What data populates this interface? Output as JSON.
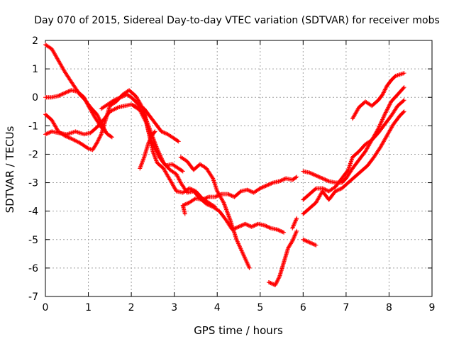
{
  "chart_data": {
    "type": "scatter",
    "title": "Day 070 of 2015, Sidereal Day-to-day VTEC variation (SDTVAR) for receiver mobs",
    "xlabel": "GPS time / hours",
    "ylabel": "SDTVAR / TECUs",
    "xlim": [
      0,
      9
    ],
    "ylim": [
      -7,
      2
    ],
    "grid": true,
    "legend": "none",
    "marker": "+",
    "color": "#ff0000",
    "x_ticks": [
      "0",
      "1",
      "2",
      "3",
      "4",
      "5",
      "6",
      "7",
      "8",
      "9"
    ],
    "y_ticks": [
      "2",
      "1",
      "0",
      "-1",
      "-2",
      "-3",
      "-4",
      "-5",
      "-6",
      "-7"
    ],
    "series": [
      {
        "points": [
          [
            0.0,
            1.85
          ],
          [
            0.15,
            1.7
          ],
          [
            0.3,
            1.3
          ],
          [
            0.45,
            0.9
          ],
          [
            0.6,
            0.55
          ],
          [
            0.8,
            0.1
          ],
          [
            0.9,
            -0.05
          ],
          [
            1.05,
            -0.35
          ],
          [
            1.2,
            -0.6
          ],
          [
            1.3,
            -0.9
          ],
          [
            1.4,
            -1.2
          ]
        ]
      },
      {
        "points": [
          [
            0.0,
            -0.6
          ],
          [
            0.15,
            -0.8
          ],
          [
            0.3,
            -1.2
          ],
          [
            0.45,
            -1.35
          ],
          [
            0.6,
            -1.45
          ],
          [
            0.8,
            -1.6
          ],
          [
            1.0,
            -1.8
          ],
          [
            1.1,
            -1.85
          ],
          [
            1.2,
            -1.6
          ],
          [
            1.3,
            -1.3
          ],
          [
            1.4,
            -0.8
          ],
          [
            1.5,
            -0.3
          ],
          [
            1.65,
            -0.15
          ],
          [
            1.8,
            0.1
          ],
          [
            1.95,
            0.25
          ],
          [
            2.1,
            0.05
          ],
          [
            2.2,
            -0.2
          ],
          [
            2.3,
            -0.5
          ],
          [
            2.4,
            -1.2
          ],
          [
            2.5,
            -1.9
          ],
          [
            2.6,
            -2.3
          ],
          [
            2.75,
            -2.5
          ],
          [
            2.9,
            -2.9
          ],
          [
            3.05,
            -3.3
          ],
          [
            3.2,
            -3.35
          ],
          [
            3.35,
            -3.2
          ],
          [
            3.5,
            -3.3
          ],
          [
            3.65,
            -3.55
          ],
          [
            3.8,
            -3.7
          ],
          [
            3.95,
            -3.85
          ]
        ]
      },
      {
        "points": [
          [
            0.0,
            -1.3
          ],
          [
            0.15,
            -1.2
          ],
          [
            0.3,
            -1.25
          ],
          [
            0.5,
            -1.3
          ],
          [
            0.7,
            -1.2
          ],
          [
            0.9,
            -1.3
          ],
          [
            1.05,
            -1.25
          ],
          [
            1.2,
            -1.05
          ],
          [
            1.35,
            -0.8
          ],
          [
            1.5,
            -0.5
          ],
          [
            1.7,
            -0.35
          ],
          [
            1.85,
            -0.3
          ],
          [
            2.0,
            -0.25
          ],
          [
            2.15,
            -0.35
          ],
          [
            2.3,
            -0.6
          ],
          [
            2.4,
            -1.0
          ],
          [
            2.5,
            -1.4
          ],
          [
            2.6,
            -1.8
          ],
          [
            2.75,
            -2.3
          ],
          [
            2.9,
            -2.55
          ],
          [
            3.05,
            -2.7
          ],
          [
            3.15,
            -3.0
          ],
          [
            3.3,
            -3.35
          ],
          [
            3.45,
            -3.3
          ],
          [
            3.6,
            -3.55
          ],
          [
            3.75,
            -3.75
          ],
          [
            3.9,
            -3.85
          ],
          [
            4.05,
            -4.0
          ],
          [
            4.2,
            -4.3
          ],
          [
            4.35,
            -4.65
          ],
          [
            4.5,
            -4.55
          ],
          [
            4.65,
            -4.45
          ],
          [
            4.8,
            -4.55
          ],
          [
            4.95,
            -4.45
          ],
          [
            5.1,
            -4.5
          ],
          [
            5.25,
            -4.6
          ],
          [
            5.4,
            -4.65
          ],
          [
            5.55,
            -4.75
          ]
        ]
      },
      {
        "points": [
          [
            0.0,
            0.0
          ],
          [
            0.15,
            0.0
          ],
          [
            0.3,
            0.05
          ],
          [
            0.45,
            0.15
          ],
          [
            0.6,
            0.25
          ],
          [
            0.75,
            0.2
          ],
          [
            0.9,
            0.0
          ],
          [
            1.0,
            -0.3
          ],
          [
            1.15,
            -0.7
          ],
          [
            1.3,
            -1.05
          ],
          [
            1.45,
            -1.3
          ],
          [
            1.55,
            -1.4
          ]
        ]
      },
      {
        "points": [
          [
            1.3,
            -0.4
          ],
          [
            1.45,
            -0.25
          ],
          [
            1.6,
            -0.1
          ],
          [
            1.75,
            0.0
          ],
          [
            1.9,
            0.1
          ],
          [
            2.0,
            0.0
          ],
          [
            2.1,
            -0.15
          ],
          [
            2.2,
            -0.3
          ],
          [
            2.3,
            -0.4
          ],
          [
            2.4,
            -0.6
          ],
          [
            2.55,
            -0.9
          ],
          [
            2.7,
            -1.2
          ],
          [
            2.85,
            -1.3
          ],
          [
            3.0,
            -1.45
          ],
          [
            3.1,
            -1.55
          ]
        ]
      },
      {
        "points": [
          [
            2.05,
            -0.3
          ],
          [
            2.2,
            -0.45
          ],
          [
            2.35,
            -0.9
          ],
          [
            2.45,
            -1.5
          ],
          [
            2.55,
            -1.8
          ],
          [
            2.65,
            -2.1
          ],
          [
            2.8,
            -2.4
          ],
          [
            2.95,
            -2.35
          ],
          [
            3.1,
            -2.5
          ],
          [
            3.2,
            -2.6
          ]
        ]
      },
      {
        "points": [
          [
            2.2,
            -2.5
          ],
          [
            2.3,
            -2.1
          ],
          [
            2.4,
            -1.6
          ],
          [
            2.5,
            -1.3
          ],
          [
            2.55,
            -1.2
          ]
        ]
      },
      {
        "points": [
          [
            3.15,
            -2.1
          ],
          [
            3.3,
            -2.25
          ],
          [
            3.45,
            -2.55
          ],
          [
            3.6,
            -2.35
          ],
          [
            3.75,
            -2.5
          ],
          [
            3.9,
            -2.85
          ],
          [
            4.0,
            -3.3
          ],
          [
            4.15,
            -3.7
          ],
          [
            4.3,
            -4.3
          ],
          [
            4.45,
            -5.0
          ],
          [
            4.6,
            -5.5
          ],
          [
            4.75,
            -6.0
          ]
        ]
      },
      {
        "points": [
          [
            3.2,
            -3.8
          ],
          [
            3.35,
            -3.7
          ],
          [
            3.5,
            -3.55
          ],
          [
            3.65,
            -3.6
          ],
          [
            3.8,
            -3.5
          ],
          [
            3.95,
            -3.5
          ],
          [
            4.1,
            -3.4
          ],
          [
            4.25,
            -3.4
          ],
          [
            4.4,
            -3.5
          ],
          [
            4.55,
            -3.3
          ],
          [
            4.7,
            -3.25
          ],
          [
            4.85,
            -3.35
          ],
          [
            5.0,
            -3.2
          ],
          [
            5.15,
            -3.1
          ],
          [
            5.3,
            -3.0
          ],
          [
            5.45,
            -2.95
          ],
          [
            5.6,
            -2.85
          ],
          [
            5.75,
            -2.9
          ],
          [
            5.85,
            -2.8
          ]
        ]
      },
      {
        "points": [
          [
            3.2,
            -3.8
          ],
          [
            3.25,
            -4.1
          ]
        ]
      },
      {
        "points": [
          [
            5.2,
            -6.5
          ],
          [
            5.35,
            -6.6
          ],
          [
            5.45,
            -6.3
          ],
          [
            5.55,
            -5.8
          ],
          [
            5.65,
            -5.3
          ],
          [
            5.75,
            -5.05
          ],
          [
            5.85,
            -4.7
          ]
        ]
      },
      {
        "points": [
          [
            5.85,
            -4.25
          ],
          [
            5.75,
            -4.6
          ]
        ]
      },
      {
        "points": [
          [
            6.0,
            -2.6
          ],
          [
            6.15,
            -2.65
          ],
          [
            6.3,
            -2.75
          ],
          [
            6.45,
            -2.85
          ],
          [
            6.6,
            -2.95
          ],
          [
            6.75,
            -3.0
          ],
          [
            6.9,
            -3.0
          ],
          [
            7.0,
            -2.85
          ],
          [
            7.15,
            -2.5
          ],
          [
            7.3,
            -2.2
          ],
          [
            7.45,
            -1.9
          ],
          [
            7.6,
            -1.5
          ],
          [
            7.75,
            -1.1
          ],
          [
            7.9,
            -0.6
          ],
          [
            8.05,
            -0.15
          ],
          [
            8.2,
            0.1
          ],
          [
            8.35,
            0.35
          ]
        ]
      },
      {
        "points": [
          [
            6.0,
            -3.6
          ],
          [
            6.15,
            -3.4
          ],
          [
            6.3,
            -3.2
          ],
          [
            6.45,
            -3.2
          ],
          [
            6.6,
            -3.3
          ],
          [
            6.75,
            -3.15
          ],
          [
            6.9,
            -2.85
          ],
          [
            7.05,
            -2.55
          ],
          [
            7.15,
            -2.1
          ],
          [
            7.3,
            -1.9
          ],
          [
            7.45,
            -1.65
          ],
          [
            7.6,
            -1.5
          ],
          [
            7.75,
            -1.25
          ],
          [
            7.9,
            -0.95
          ],
          [
            8.05,
            -0.65
          ],
          [
            8.2,
            -0.3
          ],
          [
            8.35,
            -0.1
          ]
        ]
      },
      {
        "points": [
          [
            6.0,
            -4.1
          ],
          [
            6.15,
            -3.9
          ],
          [
            6.3,
            -3.7
          ],
          [
            6.45,
            -3.3
          ],
          [
            6.6,
            -3.6
          ],
          [
            6.75,
            -3.3
          ],
          [
            6.9,
            -3.2
          ],
          [
            7.05,
            -3.0
          ],
          [
            7.2,
            -2.8
          ],
          [
            7.35,
            -2.6
          ],
          [
            7.5,
            -2.4
          ],
          [
            7.65,
            -2.1
          ],
          [
            7.8,
            -1.75
          ],
          [
            7.95,
            -1.35
          ],
          [
            8.1,
            -0.95
          ],
          [
            8.25,
            -0.65
          ],
          [
            8.35,
            -0.5
          ]
        ]
      },
      {
        "points": [
          [
            7.15,
            -0.75
          ],
          [
            7.3,
            -0.35
          ],
          [
            7.45,
            -0.15
          ],
          [
            7.6,
            -0.3
          ],
          [
            7.75,
            -0.1
          ],
          [
            7.85,
            0.1
          ],
          [
            7.95,
            0.4
          ],
          [
            8.05,
            0.6
          ],
          [
            8.15,
            0.75
          ],
          [
            8.25,
            0.8
          ],
          [
            8.35,
            0.85
          ]
        ]
      },
      {
        "points": [
          [
            6.0,
            -5.0
          ],
          [
            6.15,
            -5.1
          ],
          [
            6.3,
            -5.2
          ]
        ]
      }
    ]
  }
}
